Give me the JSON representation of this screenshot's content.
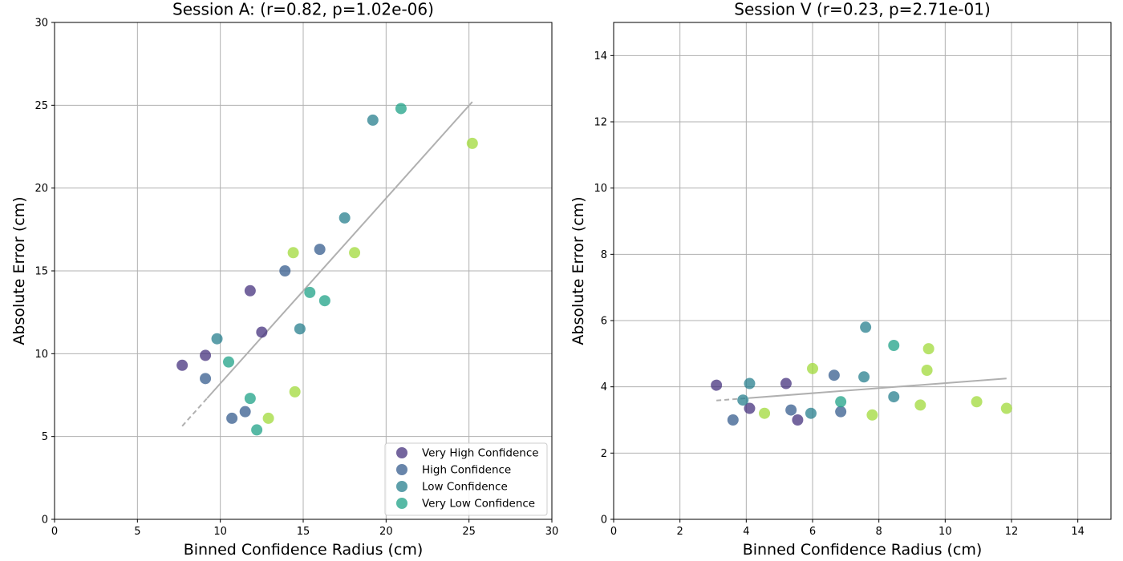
{
  "chart_data": [
    {
      "type": "scatter",
      "title": "Session A: (r=0.82, p=1.02e-06)",
      "xlabel": "Binned Confidence Radius (cm)",
      "ylabel": "Absolute Error (cm)",
      "xlim": [
        0,
        30
      ],
      "ylim": [
        0,
        30
      ],
      "xticks": [
        "0",
        "5",
        "10",
        "15",
        "20",
        "25",
        "30"
      ],
      "yticks": [
        "0",
        "5",
        "10",
        "15",
        "20",
        "25",
        "30"
      ],
      "grid": true,
      "legend_position": "lower-right",
      "trendline": {
        "x_range": [
          7.7,
          25.2
        ],
        "x_dashed_until": 9.2
      },
      "series": [
        {
          "name": "Very High Confidence",
          "color": "#46327e",
          "points": [
            [
              7.7,
              9.3
            ],
            [
              9.1,
              9.9
            ],
            [
              11.8,
              13.8
            ],
            [
              12.5,
              11.3
            ]
          ]
        },
        {
          "name": "High Confidence",
          "color": "#365c8d",
          "points": [
            [
              9.1,
              8.5
            ],
            [
              10.7,
              6.1
            ],
            [
              11.5,
              6.5
            ],
            [
              13.9,
              15.0
            ],
            [
              16.0,
              16.3
            ]
          ]
        },
        {
          "name": "Low Confidence",
          "color": "#277f8e",
          "points": [
            [
              9.8,
              10.9
            ],
            [
              14.8,
              11.5
            ],
            [
              17.5,
              18.2
            ],
            [
              19.2,
              24.1
            ]
          ]
        },
        {
          "name": "Very Low Confidence",
          "color": "#1fa187",
          "points": [
            [
              10.5,
              9.5
            ],
            [
              11.8,
              7.3
            ],
            [
              12.2,
              5.4
            ],
            [
              15.4,
              13.7
            ],
            [
              16.3,
              13.2
            ],
            [
              20.9,
              24.8
            ]
          ]
        },
        {
          "name": "",
          "color": "#a0da39",
          "points": [
            [
              12.9,
              6.1
            ],
            [
              14.4,
              16.1
            ],
            [
              14.5,
              7.7
            ],
            [
              18.1,
              16.1
            ],
            [
              25.2,
              22.7
            ]
          ]
        }
      ]
    },
    {
      "type": "scatter",
      "title": "Session V (r=0.23, p=2.71e-01)",
      "xlabel": "Binned Confidence Radius (cm)",
      "ylabel": "Absolute Error (cm)",
      "xlim": [
        0,
        15
      ],
      "ylim": [
        0,
        15
      ],
      "xticks": [
        "0",
        "2",
        "4",
        "6",
        "8",
        "10",
        "12",
        "14"
      ],
      "yticks": [
        "0",
        "2",
        "4",
        "6",
        "8",
        "10",
        "12",
        "14"
      ],
      "grid": true,
      "trendline": {
        "x_range": [
          3.1,
          11.85
        ],
        "x_dashed_until": 4.1
      },
      "series": [
        {
          "name": "Very High Confidence",
          "color": "#46327e",
          "points": [
            [
              3.1,
              4.05
            ],
            [
              4.1,
              3.35
            ],
            [
              5.2,
              4.1
            ],
            [
              5.55,
              3.0
            ]
          ]
        },
        {
          "name": "High Confidence",
          "color": "#365c8d",
          "points": [
            [
              3.6,
              3.0
            ],
            [
              5.35,
              3.3
            ],
            [
              6.65,
              4.35
            ],
            [
              6.85,
              3.25
            ]
          ]
        },
        {
          "name": "Low Confidence",
          "color": "#277f8e",
          "points": [
            [
              3.9,
              3.6
            ],
            [
              4.1,
              4.1
            ],
            [
              5.95,
              3.2
            ],
            [
              7.55,
              4.3
            ],
            [
              7.6,
              5.8
            ],
            [
              8.45,
              3.7
            ]
          ]
        },
        {
          "name": "Very Low Confidence",
          "color": "#1fa187",
          "points": [
            [
              6.85,
              3.55
            ],
            [
              8.45,
              5.25
            ]
          ]
        },
        {
          "name": "",
          "color": "#a0da39",
          "points": [
            [
              4.55,
              3.2
            ],
            [
              6.0,
              4.55
            ],
            [
              7.8,
              3.15
            ],
            [
              9.25,
              3.45
            ],
            [
              9.45,
              4.5
            ],
            [
              9.5,
              5.15
            ],
            [
              10.95,
              3.55
            ],
            [
              11.85,
              3.35
            ]
          ]
        }
      ]
    }
  ]
}
